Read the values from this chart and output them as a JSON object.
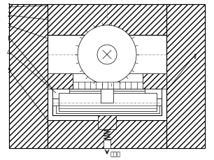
{
  "bg_color": "#ffffff",
  "line_color": "#000000",
  "fig_width": 3.06,
  "fig_height": 2.29,
  "dpi": 100,
  "outlet_label": "出油口",
  "labels_left": [
    "1",
    "2",
    "3",
    "I",
    "4",
    "5"
  ],
  "label_roman": "II"
}
